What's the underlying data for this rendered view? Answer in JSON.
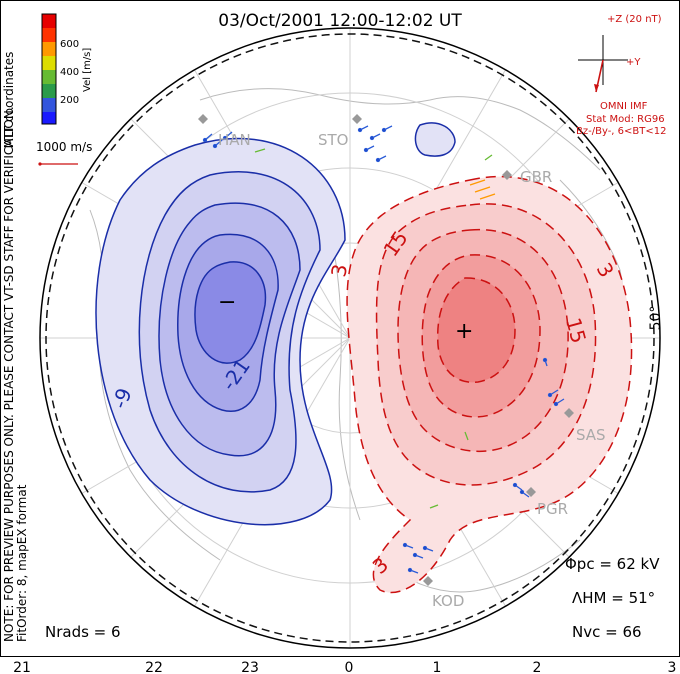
{
  "title": "03/Oct/2001 12:00-12:02 UT",
  "coords_label": "MLT coordinates",
  "colorbar": {
    "label": "Vel [m/s]",
    "ticks": [
      "600",
      "400",
      "200"
    ],
    "colors": [
      "#e60000",
      "#ff3300",
      "#ff9900",
      "#dddd00",
      "#66bb33",
      "#2a9b4a",
      "#3355dd",
      "#1a1aff"
    ]
  },
  "velocity_scale": {
    "label": "1000 m/s"
  },
  "imf": {
    "axis_z": "+Z (20 nT)",
    "axis_y": "+Y",
    "source": "OMNI IMF",
    "stat_mod": "Stat Mod: RG96",
    "conditions": "Bz-/By-, 6<BT<12"
  },
  "stations": [
    {
      "name": "HAN"
    },
    {
      "name": "STO"
    },
    {
      "name": "GBR"
    },
    {
      "name": "SAS"
    },
    {
      "name": "PGR"
    },
    {
      "name": "KOD"
    }
  ],
  "contours": {
    "neg_labels": [
      "-9",
      "-21"
    ],
    "pos_labels": [
      "3",
      "15",
      "3",
      "15",
      "3"
    ],
    "min_marker": "−",
    "max_marker": "+"
  },
  "latitude_label": "50°",
  "notes": {
    "preview": "NOTE: FOR PREVIEW PURPOSES ONLY. PLEASE CONTACT VT-SD STAFF FOR VERIFICATION.",
    "fitorder": "FitOrder: 8, mapEX format"
  },
  "stats": {
    "phi_pc": "Φpc = 62 kV",
    "lambda_hm": "ΛHM = 51°",
    "n_vc": "Nvc = 66",
    "n_rads": "Nrads = 6"
  },
  "mlt_axis": {
    "ticks": [
      "21",
      "22",
      "23",
      "0",
      "1",
      "2",
      "3"
    ]
  }
}
